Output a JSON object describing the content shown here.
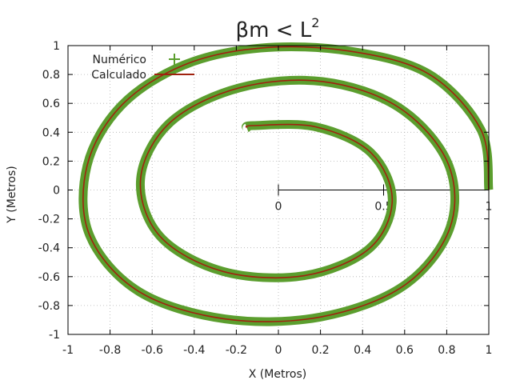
{
  "chart_data": {
    "type": "line",
    "title": "βm < L",
    "title_superscript": "2",
    "xlabel": "X (Metros)",
    "ylabel": "Y (Metros)",
    "xlim": [
      -1,
      1
    ],
    "ylim": [
      -1,
      1
    ],
    "grid": true,
    "legend_position": "top-left",
    "x_ticks": [
      "-1",
      "-0.8",
      "-0.6",
      "-0.4",
      "-0.2",
      "0",
      "0.2",
      "0.4",
      "0.6",
      "0.8",
      "1"
    ],
    "y_ticks": [
      "-1",
      "-0.8",
      "-0.6",
      "-0.4",
      "-0.2",
      "0",
      "0.2",
      "0.4",
      "0.6",
      "0.8",
      "1"
    ],
    "inner_axis_ticks": [
      "0",
      "0.5",
      "1"
    ],
    "series": [
      {
        "name": "Numérico",
        "color": "#5b9e2e",
        "marker": "plus",
        "points": [
          [
            1.0,
            0.0
          ],
          [
            0.962,
            0.419
          ],
          [
            0.714,
            0.804
          ],
          [
            0.333,
            0.963
          ],
          [
            -0.085,
            0.983
          ],
          [
            -0.45,
            0.865
          ],
          [
            -0.747,
            0.584
          ],
          [
            -0.909,
            0.17
          ],
          [
            -0.898,
            -0.311
          ],
          [
            -0.663,
            -0.703
          ],
          [
            -0.253,
            -0.893
          ],
          [
            0.202,
            -0.879
          ],
          [
            0.596,
            -0.663
          ],
          [
            0.815,
            -0.263
          ],
          [
            0.805,
            0.188
          ],
          [
            0.572,
            0.572
          ],
          [
            0.21,
            0.751
          ],
          [
            -0.187,
            0.707
          ],
          [
            -0.515,
            0.467
          ],
          [
            -0.655,
            0.077
          ],
          [
            -0.563,
            -0.32
          ],
          [
            -0.263,
            -0.564
          ],
          [
            0.12,
            -0.594
          ],
          [
            0.43,
            -0.408
          ],
          [
            0.541,
            -0.075
          ],
          [
            0.44,
            0.258
          ],
          [
            0.178,
            0.437
          ],
          [
            -0.12,
            0.446
          ],
          [
            -0.15,
            0.43
          ]
        ]
      },
      {
        "name": "Calculado",
        "color": "#a0220f",
        "marker": "line",
        "points": [
          [
            1.0,
            0.0
          ],
          [
            0.962,
            0.419
          ],
          [
            0.714,
            0.804
          ],
          [
            0.333,
            0.963
          ],
          [
            -0.085,
            0.983
          ],
          [
            -0.45,
            0.865
          ],
          [
            -0.747,
            0.584
          ],
          [
            -0.909,
            0.17
          ],
          [
            -0.898,
            -0.311
          ],
          [
            -0.663,
            -0.703
          ],
          [
            -0.253,
            -0.893
          ],
          [
            0.202,
            -0.879
          ],
          [
            0.596,
            -0.663
          ],
          [
            0.815,
            -0.263
          ],
          [
            0.805,
            0.188
          ],
          [
            0.572,
            0.572
          ],
          [
            0.21,
            0.751
          ],
          [
            -0.187,
            0.707
          ],
          [
            -0.515,
            0.467
          ],
          [
            -0.655,
            0.077
          ],
          [
            -0.563,
            -0.32
          ],
          [
            -0.263,
            -0.564
          ],
          [
            0.12,
            -0.594
          ],
          [
            0.43,
            -0.408
          ],
          [
            0.541,
            -0.075
          ],
          [
            0.44,
            0.258
          ],
          [
            0.178,
            0.437
          ],
          [
            -0.12,
            0.446
          ],
          [
            -0.15,
            0.43
          ]
        ]
      }
    ]
  }
}
